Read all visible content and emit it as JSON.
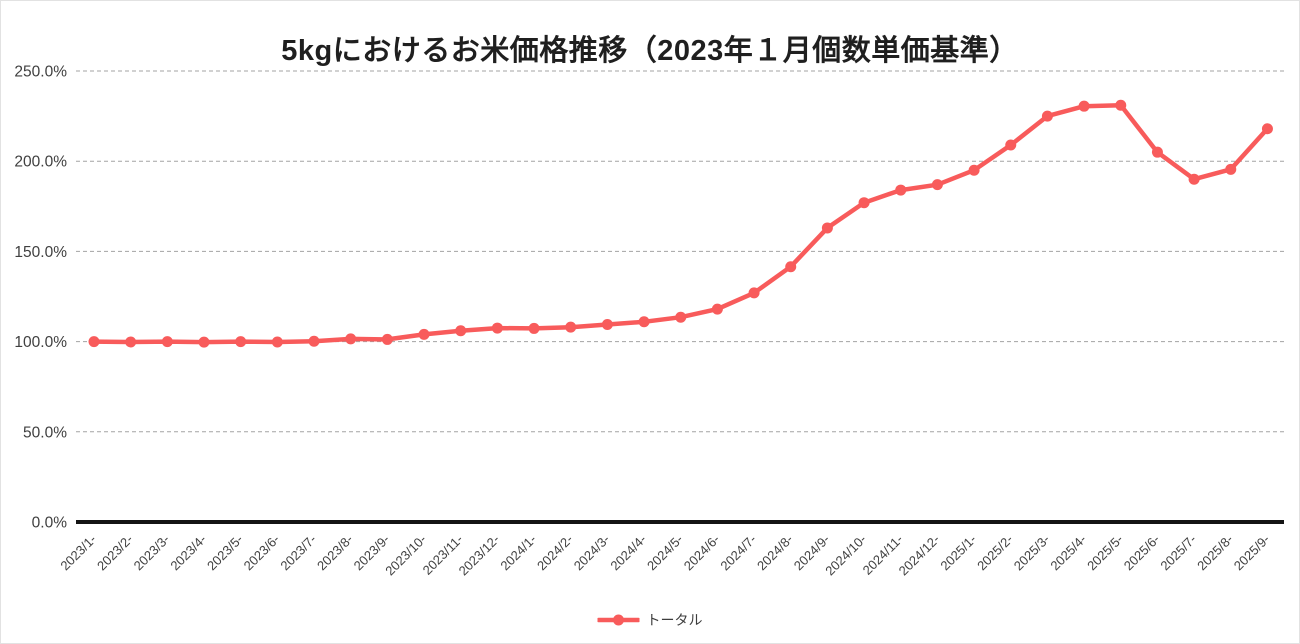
{
  "chart_data": {
    "type": "line",
    "title": "5kgにおけるお米価格推移（2023年１月個数単価基準）",
    "xlabel": "",
    "ylabel": "",
    "x": [
      "2023/1-",
      "2023/2-",
      "2023/3-",
      "2023/4-",
      "2023/5-",
      "2023/6-",
      "2023/7-",
      "2023/8-",
      "2023/9-",
      "2023/10-",
      "2023/11-",
      "2023/12-",
      "2024/1-",
      "2024/2-",
      "2024/3-",
      "2024/4-",
      "2024/5-",
      "2024/6-",
      "2024/7-",
      "2024/8-",
      "2024/9-",
      "2024/10-",
      "2024/11-",
      "2024/12-",
      "2025/1-",
      "2025/2-",
      "2025/3-",
      "2025/4-",
      "2025/5-",
      "2025/6-",
      "2025/7-",
      "2025/8-",
      "2025/9-"
    ],
    "series": [
      {
        "name": "トータル",
        "color": "#F85B5B",
        "values": [
          100,
          99.8,
          100,
          99.7,
          100,
          99.8,
          100.2,
          101.5,
          101.2,
          104,
          106,
          107.5,
          107.3,
          108,
          109.5,
          111,
          113.5,
          118,
          127,
          141.5,
          163,
          177,
          184,
          187,
          195,
          209,
          225,
          230.5,
          231,
          205,
          190,
          195.5,
          218
        ]
      }
    ],
    "ylim": [
      0,
      250
    ],
    "yticks": [
      "0.0%",
      "50.0%",
      "100.0%",
      "150.0%",
      "200.0%",
      "250.0%"
    ],
    "ytick_values": [
      0,
      50,
      100,
      150,
      200,
      250
    ],
    "grid": "horizontal-dashed",
    "legend_position": "bottom-center",
    "colors": {
      "gridline": "#A3A3A3",
      "axis": "#141414",
      "tick_label": "#404040",
      "title": "#1F1F1F"
    }
  }
}
